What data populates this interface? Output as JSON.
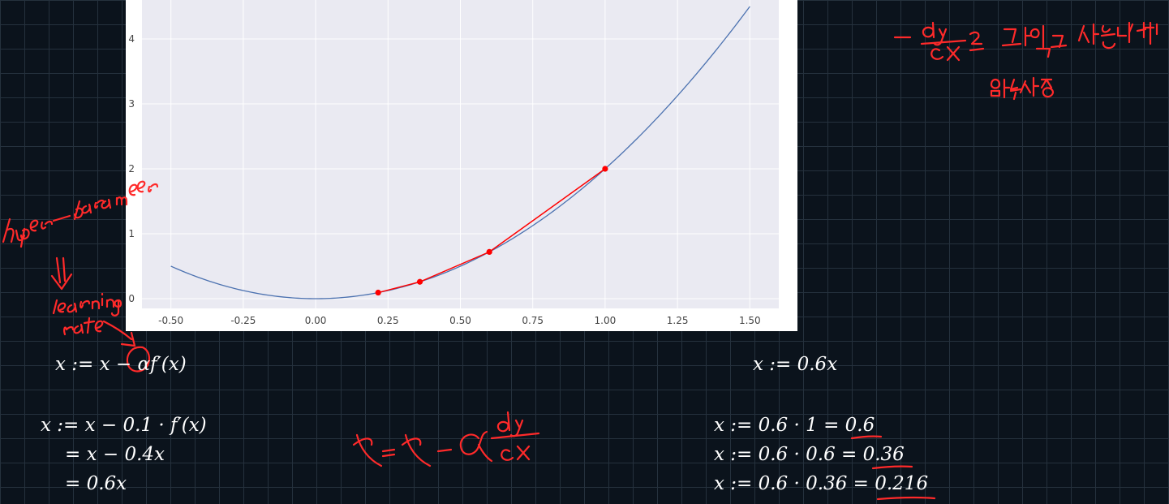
{
  "chart_data": {
    "type": "line",
    "xlim": [
      -0.6,
      1.6
    ],
    "ylim": [
      -0.15,
      4.6
    ],
    "x_ticks": [
      "-0.50",
      "-0.25",
      "0.00",
      "0.25",
      "0.50",
      "0.75",
      "1.00",
      "1.25",
      "1.50"
    ],
    "x_tick_values": [
      -0.5,
      -0.25,
      0.0,
      0.25,
      0.5,
      0.75,
      1.0,
      1.25,
      1.5
    ],
    "y_ticks": [
      "0",
      "1",
      "2",
      "3",
      "4"
    ],
    "y_tick_values": [
      0,
      1,
      2,
      3,
      4
    ],
    "grid": true,
    "curve": {
      "function": "2x^2",
      "x_range": [
        -0.5,
        1.5
      ],
      "color": "#4c72b0"
    },
    "descent_points": {
      "color": "#ff0000",
      "x": [
        1.0,
        0.6,
        0.36,
        0.216
      ],
      "y": [
        2.0,
        0.72,
        0.2592,
        0.0933
      ]
    }
  },
  "equations": {
    "update_rule": "x := x − αf′(x)",
    "step_line1": "x := x − 0.1 · f′(x)",
    "step_line2": "= x − 0.4x",
    "step_line3": "= 0.6x",
    "simplified": "x := 0.6x",
    "iter1": "x := 0.6 · 1 = 0.6",
    "iter2": "x := 0.6 · 0.6 = 0.36",
    "iter3": "x := 0.6 · 0.36 = 0.216"
  },
  "handwriting": {
    "hyper_parameter": "hyper parameter",
    "learning_rate": "learning rate",
    "update_formula": "x = x − α dy/dx",
    "note_top_right_line1": "− dy/dx 를 그대로 사용하면",
    "note_top_right_line2": "발산함"
  }
}
